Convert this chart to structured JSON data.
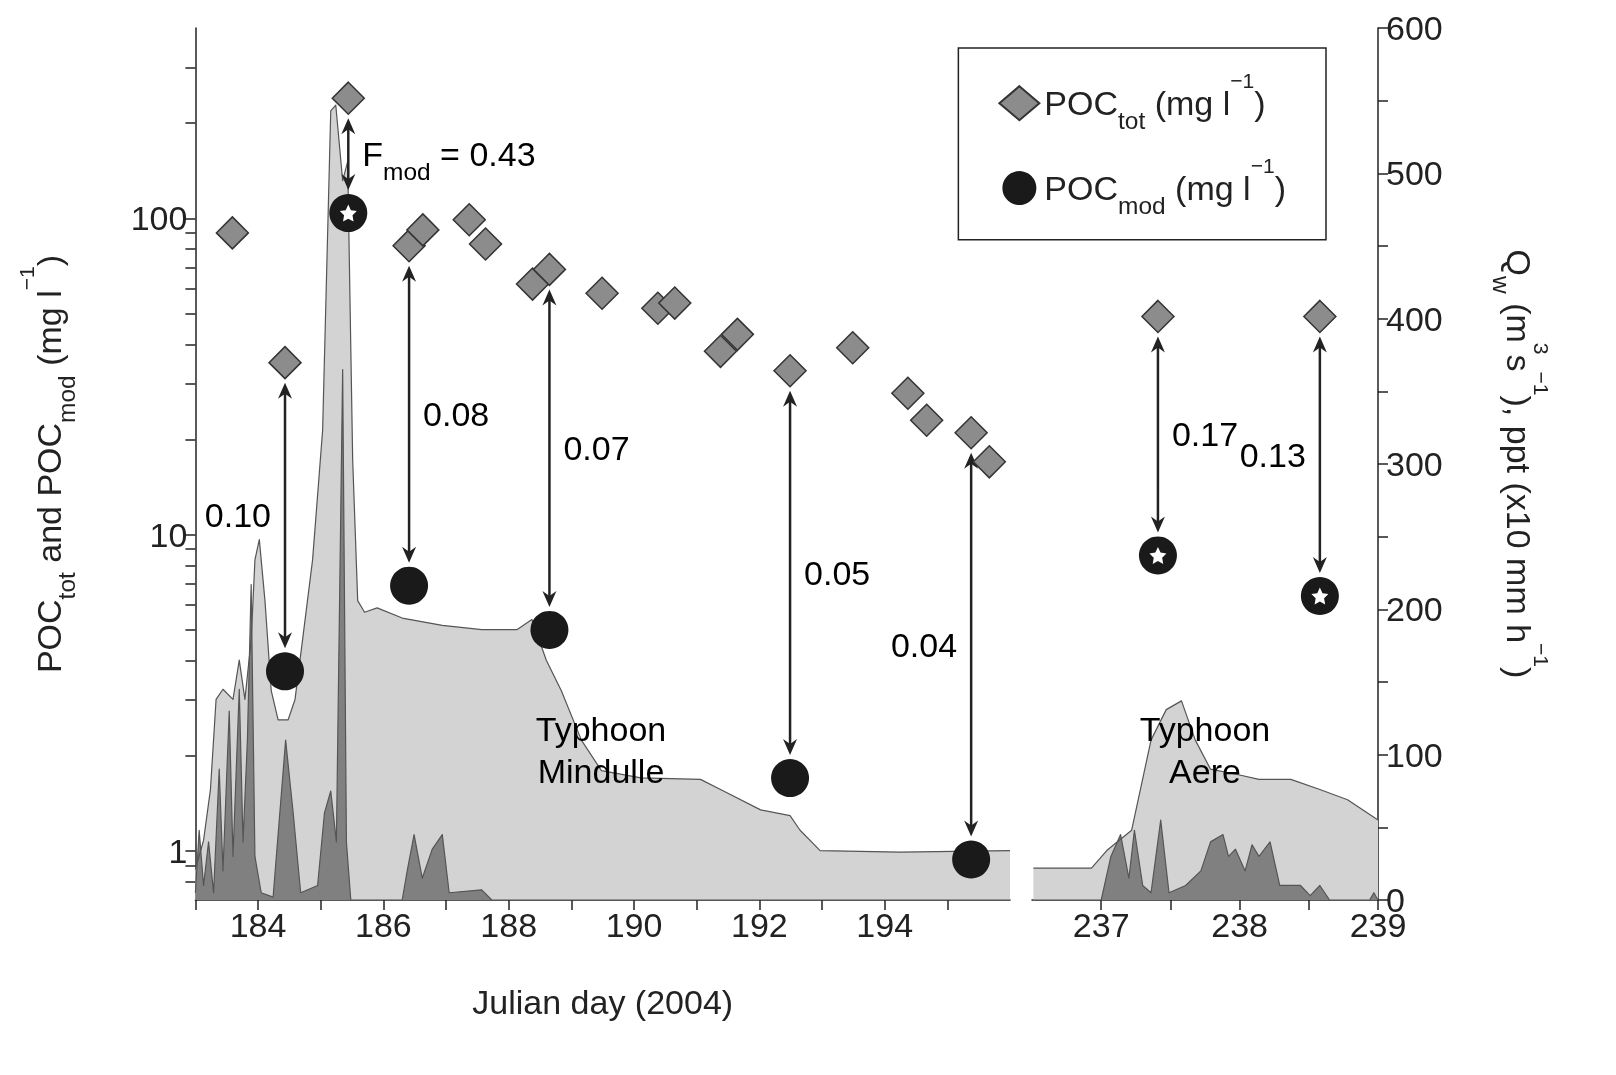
{
  "chart_data": [
    {
      "type": "scatter",
      "xlabel": "Julian day (2004)",
      "ylabel": "POC$_{tot}$ and POC$_{mod}$ (mg l$^{−1}$)",
      "log": "y",
      "legend": "top right",
      "xlim": [
        183,
        196
      ],
      "xticks": [
        {
          "value": 183,
          "label": null
        },
        184,
        {
          "value": 185,
          "label": null
        },
        186,
        {
          "value": 187,
          "label": null
        },
        188,
        {
          "value": 189,
          "label": null
        },
        190,
        {
          "value": 191,
          "label": null
        },
        192,
        {
          "value": 193,
          "label": null
        },
        194,
        {
          "value": 195,
          "label": null
        }
      ],
      "ylim": [
        0.7,
        400
      ],
      "yticks": [
        {
          "value": 0.8,
          "label": null
        },
        {
          "value": 0.9,
          "label": null
        },
        1,
        {
          "value": 2,
          "label": null
        },
        {
          "value": 3,
          "label": null
        },
        {
          "value": 4,
          "label": null
        },
        {
          "value": 5,
          "label": null
        },
        {
          "value": 6,
          "label": null
        },
        {
          "value": 7,
          "label": null
        },
        {
          "value": 8,
          "label": null
        },
        {
          "value": 9,
          "label": null
        },
        10,
        {
          "value": 20,
          "label": null
        },
        {
          "value": 30,
          "label": null
        },
        {
          "value": 40,
          "label": null
        },
        {
          "value": 50,
          "label": null
        },
        {
          "value": 60,
          "label": null
        },
        {
          "value": 70,
          "label": null
        },
        {
          "value": 80,
          "label": null
        },
        {
          "value": 90,
          "label": null
        },
        100,
        {
          "value": 200,
          "label": null
        },
        {
          "value": 300,
          "label": null
        }
      ],
      "y2lim": [
        0,
        600
      ],
      "series": [
        {
          "type": "area",
          "axis": "y2",
          "color": "#d3d3d3",
          "x": [
            183.0,
            183.13,
            183.24,
            183.33,
            183.44,
            183.6,
            183.7,
            183.79,
            183.89,
            183.95,
            184.02,
            184.11,
            184.21,
            184.32,
            184.48,
            184.59,
            184.71,
            184.87,
            185.03,
            185.16,
            185.24,
            185.35,
            185.43,
            185.51,
            185.59,
            185.7,
            185.9,
            186.3,
            186.94,
            187.57,
            188.13,
            188.37,
            188.6,
            188.84,
            189.16,
            189.48,
            190.11,
            191.06,
            191.38,
            192.02,
            192.49,
            192.65,
            192.97,
            194.24,
            196.0
          ],
          "values": [
            21,
            41,
            76,
            138,
            145,
            138,
            165,
            138,
            179,
            234,
            248,
            206,
            144,
            124,
            124,
            138,
            179,
            234,
            323,
            543,
            547,
            495,
            508,
            303,
            206,
            198,
            201,
            194,
            189,
            186,
            186,
            193,
            165,
            144,
            110,
            89,
            84,
            83,
            76,
            62,
            58,
            48,
            34,
            33,
            34
          ]
        },
        {
          "type": "area",
          "axis": "y2",
          "color": "#808080",
          "x": [
            183.0,
            183.06,
            183.13,
            183.21,
            183.29,
            183.38,
            183.44,
            183.54,
            183.6,
            183.7,
            183.76,
            183.83,
            183.89,
            183.95,
            184.05,
            184.24,
            184.44,
            184.56,
            184.68,
            184.95,
            185.06,
            185.16,
            185.25,
            185.35,
            185.41,
            185.48,
            186.3,
            186.38,
            186.49,
            186.62,
            186.78,
            186.94,
            187.05,
            187.57,
            187.73,
            196.0
          ],
          "values": [
            5,
            48,
            10,
            40,
            5,
            90,
            20,
            130,
            30,
            145,
            40,
            110,
            217,
            30,
            5,
            2,
            110,
            60,
            5,
            10,
            60,
            75,
            40,
            365,
            40,
            0,
            0,
            20,
            45,
            15,
            35,
            45,
            5,
            7,
            0,
            0
          ]
        },
        {
          "name": "POC$_{tot}$ (mg l$^{−1}$)",
          "marker": "diamond",
          "color": "#8c8c8c",
          "x": [
            183.59,
            184.43,
            185.44,
            186.41,
            186.63,
            187.37,
            187.63,
            188.38,
            188.65,
            189.49,
            190.38,
            190.65,
            191.38,
            191.65,
            192.49,
            193.49,
            194.37,
            194.67,
            195.38,
            195.67
          ],
          "values": [
            90,
            35,
            240,
            82,
            92,
            99,
            83,
            62,
            69,
            58,
            52,
            54,
            38,
            43,
            33,
            39,
            28,
            23,
            21,
            17
          ]
        },
        {
          "name": "POC$_{mod}$ (mg l$^{−1}$)",
          "marker": "circle",
          "color": "#1a1a1a",
          "x": [
            184.43,
            185.44,
            186.41,
            188.65,
            192.49,
            195.38
          ],
          "values": [
            3.7,
            104,
            6.9,
            5.0,
            1.7,
            0.94
          ]
        },
        {
          "marker": "star",
          "color": "#ffffff",
          "x": [
            185.44
          ],
          "values": [
            104
          ]
        }
      ],
      "annotations": [
        "0.10",
        "F$_{mod}$ = 0.43",
        "0.08",
        "0.07",
        "0.05",
        "0.04",
        "Typhoon\nMindulle"
      ]
    },
    {
      "type": "scatter",
      "log": "y",
      "xlim": [
        236.5,
        239
      ],
      "xticks": [
        237,
        {
          "value": 237.5,
          "label": null
        },
        238,
        {
          "value": 238.5,
          "label": null
        },
        239
      ],
      "ylim": [
        0.7,
        400
      ],
      "y2lim": [
        0,
        600
      ],
      "y2ticks": [
        0,
        {
          "value": 50,
          "label": null
        },
        100,
        {
          "value": 150,
          "label": null
        },
        200,
        {
          "value": 250,
          "label": null
        },
        300,
        {
          "value": 350,
          "label": null
        },
        400,
        {
          "value": 450,
          "label": null
        },
        500,
        {
          "value": 550,
          "label": null
        },
        600
      ],
      "y2label": "Q$_{w}$ (m$^{3}$s$^{−1}$), ppt (x10 mm h$^{−1}$)",
      "series": [
        {
          "type": "area",
          "axis": "y2",
          "color": "#d3d3d3",
          "x": [
            236.51,
            236.93,
            237.04,
            237.22,
            237.36,
            237.47,
            237.58,
            237.68,
            237.79,
            238.0,
            238.14,
            238.37,
            238.58,
            238.78,
            239.0
          ],
          "values": [
            22,
            22,
            34,
            48,
            110,
            131,
            137,
            110,
            90,
            86,
            83,
            83,
            76,
            69,
            55
          ]
        },
        {
          "type": "area",
          "axis": "y2",
          "color": "#808080",
          "x": [
            236.51,
            237.0,
            237.07,
            237.14,
            237.2,
            237.24,
            237.3,
            237.36,
            237.43,
            237.49,
            237.61,
            237.72,
            237.79,
            237.88,
            237.92,
            237.97,
            238.04,
            238.09,
            238.14,
            238.22,
            238.29,
            238.44,
            238.51,
            238.58,
            238.65,
            238.94,
            238.97,
            239.0
          ],
          "values": [
            0,
            0,
            30,
            45,
            15,
            48,
            10,
            5,
            55,
            5,
            10,
            20,
            40,
            45,
            30,
            35,
            20,
            38,
            30,
            40,
            10,
            10,
            3,
            10,
            0,
            0,
            5,
            0
          ]
        },
        {
          "marker": "diamond",
          "color": "#8c8c8c",
          "x": [
            237.41,
            238.58
          ],
          "values": [
            49,
            49
          ]
        },
        {
          "marker": "circle",
          "color": "#1a1a1a",
          "x": [
            237.41,
            238.58
          ],
          "values": [
            8.6,
            6.4
          ]
        },
        {
          "marker": "star",
          "color": "#ffffff",
          "x": [
            237.41,
            238.58
          ],
          "values": [
            8.6,
            6.4
          ]
        }
      ],
      "annotations": [
        "0.17",
        "0.13",
        "Typhoon\nAere"
      ]
    }
  ]
}
